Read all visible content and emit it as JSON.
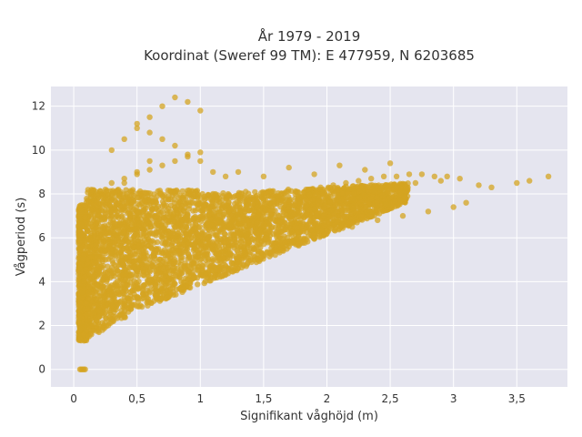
{
  "chart_data": {
    "type": "scatter",
    "title": "År 1979 - 2019",
    "subtitle": "Koordinat (Sweref 99 TM): E 477959, N 6203685",
    "xlabel": "Signifikant våghöjd (m)",
    "ylabel": "Vågperiod (s)",
    "xlim": [
      -0.18,
      3.9
    ],
    "ylim": [
      -0.8,
      12.9
    ],
    "xticks": [
      0,
      0.5,
      1,
      1.5,
      2,
      2.5,
      3,
      3.5
    ],
    "xtick_labels": [
      "0",
      "0,5",
      "1",
      "1,5",
      "2",
      "2,5",
      "3",
      "3,5"
    ],
    "yticks": [
      0,
      2,
      4,
      6,
      8,
      10,
      12
    ],
    "ytick_labels": [
      "0",
      "2",
      "4",
      "6",
      "8",
      "10",
      "12"
    ],
    "grid": true,
    "colors": {
      "marker": "#d4a421",
      "plot_bg": "#e5e5ef",
      "grid": "#ffffff"
    },
    "series": [
      {
        "x": [
          0.05,
          0.06,
          0.07,
          0.08,
          0.09,
          0.05,
          0.08,
          0.1,
          0.12,
          0.15,
          0.18,
          0.2,
          0.1,
          0.12,
          0.15,
          0.2,
          0.25,
          0.3,
          0.35,
          0.15,
          0.2,
          0.25,
          0.3,
          0.4,
          0.5,
          0.6,
          0.3,
          0.4,
          0.5,
          0.6,
          0.7,
          0.8,
          0.9,
          1.0,
          0.5,
          0.6,
          0.7,
          0.8,
          0.9,
          1.0,
          1.1,
          1.2,
          0.2,
          0.3,
          0.4,
          0.5,
          0.6,
          0.7,
          0.8,
          0.1,
          0.15,
          0.2,
          0.25,
          0.3,
          0.35,
          0.4,
          0.45,
          0.5,
          0.55,
          0.6,
          0.65,
          0.7,
          0.75,
          0.8,
          0.85,
          0.9,
          0.95,
          1.0,
          1.05,
          1.1,
          1.2,
          1.3,
          1.4,
          1.5,
          1.6,
          1.7,
          1.8,
          1.9,
          2.0,
          1.3,
          1.5,
          1.7,
          1.9,
          2.1,
          2.3,
          2.5,
          2.2,
          2.4,
          2.6,
          2.8,
          3.0,
          3.1,
          2.7,
          2.9,
          3.2,
          3.3,
          3.5,
          3.6,
          3.75,
          0.2,
          0.25,
          0.3,
          0.4,
          0.5,
          0.6,
          0.7,
          0.8,
          0.9,
          1.0,
          0.6,
          0.65,
          0.7,
          0.8,
          0.9,
          1.0,
          1.1,
          0.8,
          1.0,
          0.25,
          0.35,
          0.45,
          0.55,
          0.65,
          0.75,
          0.85,
          0.95,
          1.05,
          1.15,
          1.25,
          1.35,
          1.45,
          1.55,
          1.65,
          1.75,
          1.85,
          1.95,
          2.05,
          2.15,
          2.25,
          2.35,
          2.45,
          2.55,
          2.65,
          2.75,
          2.85,
          2.95,
          3.05
        ],
        "y": [
          0,
          0,
          0,
          0,
          0,
          1.4,
          1.6,
          1.8,
          1.5,
          2.0,
          2.2,
          2.4,
          3.0,
          3.5,
          4.0,
          4.5,
          5.0,
          5.5,
          6.0,
          6.5,
          7.0,
          7.5,
          8.0,
          8.5,
          9.0,
          9.5,
          10.0,
          10.5,
          11.0,
          11.5,
          12.0,
          12.4,
          12.2,
          11.8,
          11.2,
          10.8,
          10.5,
          10.2,
          9.8,
          9.5,
          9.0,
          8.8,
          6.0,
          6.2,
          6.5,
          6.8,
          7.0,
          7.2,
          7.4,
          2.5,
          2.6,
          2.7,
          2.8,
          2.9,
          3.0,
          3.1,
          3.2,
          3.3,
          3.4,
          3.5,
          3.6,
          3.7,
          3.8,
          3.9,
          4.0,
          4.1,
          4.2,
          4.3,
          4.4,
          4.5,
          4.7,
          4.9,
          5.0,
          5.2,
          5.4,
          5.6,
          5.8,
          6.0,
          6.2,
          9.0,
          8.8,
          9.2,
          8.9,
          9.3,
          9.1,
          9.4,
          6.5,
          6.8,
          7.0,
          7.2,
          7.4,
          7.6,
          8.5,
          8.6,
          8.4,
          8.3,
          8.5,
          8.6,
          8.8,
          8.0,
          8.2,
          8.5,
          8.7,
          8.9,
          9.1,
          9.3,
          9.5,
          9.7,
          9.9,
          5.0,
          5.5,
          6.0,
          6.5,
          7.0,
          7.5,
          8.0,
          4.5,
          5.0,
          7.8,
          7.6,
          7.4,
          7.2,
          7.0,
          6.8,
          6.6,
          6.4,
          6.6,
          6.8,
          7.0,
          7.2,
          7.4,
          7.6,
          7.8,
          8.0,
          8.2,
          8.3,
          8.4,
          8.5,
          8.6,
          8.7,
          8.8,
          8.8,
          8.9,
          8.9,
          8.8,
          8.8,
          8.7
        ]
      }
    ]
  }
}
